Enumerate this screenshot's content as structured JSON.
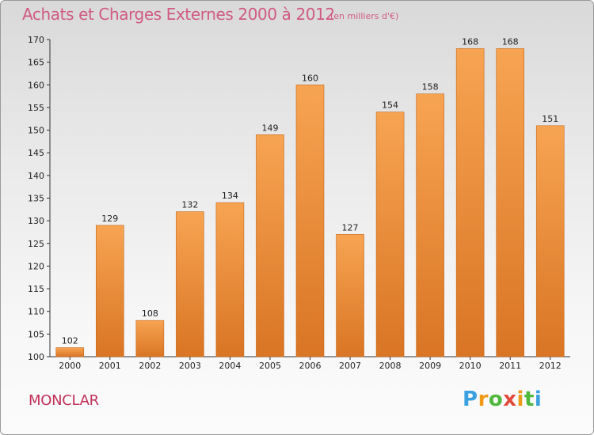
{
  "header": {
    "title": "Achats et Charges Externes 2000 à 2012",
    "subtitle": "(en milliers d'€)"
  },
  "footer": {
    "commune": "MONCLAR",
    "logo_text": "Proxiti"
  },
  "colors": {
    "bar_light": "#f7a452",
    "bar_dark": "#d97524",
    "title": "#d05a83",
    "commune": "#c0305a"
  },
  "chart_data": {
    "type": "bar",
    "categories": [
      "2000",
      "2001",
      "2002",
      "2003",
      "2004",
      "2005",
      "2006",
      "2007",
      "2008",
      "2009",
      "2010",
      "2011",
      "2012"
    ],
    "values": [
      102,
      129,
      108,
      132,
      134,
      149,
      160,
      127,
      154,
      158,
      168,
      168,
      151
    ],
    "title": "Achats et Charges Externes 2000 à 2012",
    "subtitle": "(en milliers d'€)",
    "xlabel": "",
    "ylabel": "",
    "ylim": [
      100,
      170
    ],
    "yticks": [
      100,
      105,
      110,
      115,
      120,
      125,
      130,
      135,
      140,
      145,
      150,
      155,
      160,
      165,
      170
    ],
    "grid": false,
    "legend": "none"
  }
}
